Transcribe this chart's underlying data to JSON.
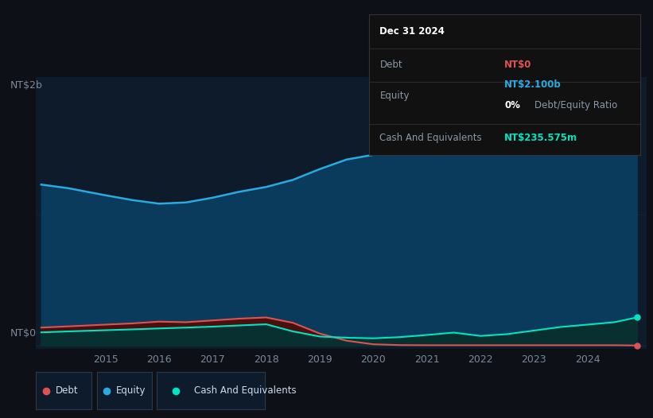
{
  "background_color": "#0d1117",
  "plot_bg_color": "#0d1b2a",
  "years": [
    2013.8,
    2014.3,
    2015,
    2015.5,
    2016,
    2016.5,
    2017,
    2017.5,
    2018,
    2018.5,
    2019,
    2019.5,
    2020,
    2020.5,
    2021,
    2021.5,
    2022,
    2022.5,
    2023,
    2023.5,
    2024,
    2024.5,
    2024.92
  ],
  "equity": [
    1350,
    1320,
    1260,
    1220,
    1190,
    1200,
    1240,
    1290,
    1330,
    1390,
    1480,
    1560,
    1600,
    1650,
    1710,
    1760,
    1820,
    1860,
    1910,
    1960,
    2030,
    2075,
    2100
  ],
  "debt": [
    150,
    160,
    175,
    185,
    200,
    195,
    210,
    225,
    235,
    190,
    100,
    40,
    10,
    3,
    2,
    2,
    2,
    2,
    2,
    2,
    2,
    2,
    0
  ],
  "cash": [
    110,
    118,
    128,
    135,
    143,
    150,
    158,
    168,
    178,
    118,
    75,
    65,
    60,
    70,
    88,
    108,
    80,
    95,
    125,
    155,
    175,
    195,
    235
  ],
  "equity_color": "#29abe2",
  "equity_fill": "#0a3a5c",
  "debt_color": "#e05252",
  "debt_fill": "#4a1010",
  "cash_color": "#00e5c0",
  "cash_fill": "#083030",
  "ylabel_top": "NT$2b",
  "ylabel_bottom": "NT$0",
  "tooltip_bg": "#111111",
  "tooltip_border": "#333333",
  "tooltip_title": "Dec 31 2024",
  "grid_color": "#1a2a3a",
  "tick_color": "#7a8898",
  "legend_bg": "#0d1b2a",
  "legend_border": "#2a3a4a",
  "x_ticks": [
    2015,
    2016,
    2017,
    2018,
    2019,
    2020,
    2021,
    2022,
    2023,
    2024
  ],
  "ylim_min": -30,
  "ylim_max": 2250
}
